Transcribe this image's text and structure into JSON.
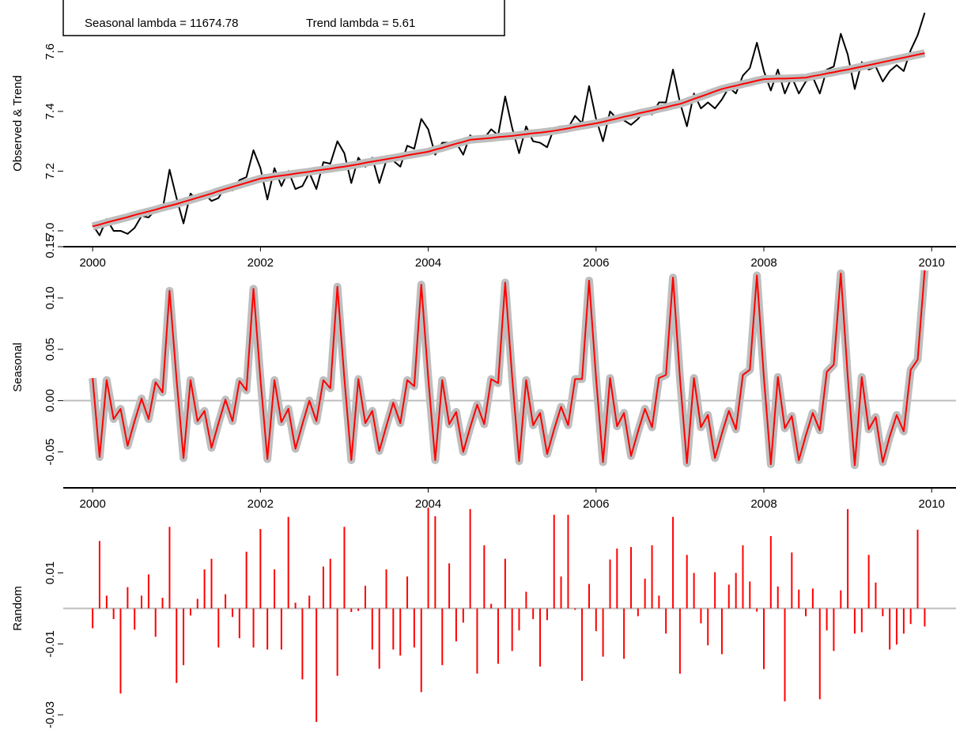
{
  "chart_data": {
    "type": "line",
    "x": [
      2000,
      2000.083,
      2000.167,
      2000.25,
      2000.333,
      2000.417,
      2000.5,
      2000.583,
      2000.667,
      2000.75,
      2000.833,
      2000.917,
      2001,
      2001.083,
      2001.167,
      2001.25,
      2001.333,
      2001.417,
      2001.5,
      2001.583,
      2001.667,
      2001.75,
      2001.833,
      2001.917,
      2002,
      2002.083,
      2002.167,
      2002.25,
      2002.333,
      2002.417,
      2002.5,
      2002.583,
      2002.667,
      2002.75,
      2002.833,
      2002.917,
      2003,
      2003.083,
      2003.167,
      2003.25,
      2003.333,
      2003.417,
      2003.5,
      2003.583,
      2003.667,
      2003.75,
      2003.833,
      2003.917,
      2004,
      2004.083,
      2004.167,
      2004.25,
      2004.333,
      2004.417,
      2004.5,
      2004.583,
      2004.667,
      2004.75,
      2004.833,
      2004.917,
      2005,
      2005.083,
      2005.167,
      2005.25,
      2005.333,
      2005.417,
      2005.5,
      2005.583,
      2005.667,
      2005.75,
      2005.833,
      2005.917,
      2006,
      2006.083,
      2006.167,
      2006.25,
      2006.333,
      2006.417,
      2006.5,
      2006.583,
      2006.667,
      2006.75,
      2006.833,
      2006.917,
      2007,
      2007.083,
      2007.167,
      2007.25,
      2007.333,
      2007.417,
      2007.5,
      2007.583,
      2007.667,
      2007.75,
      2007.833,
      2007.917,
      2008,
      2008.083,
      2008.167,
      2008.25,
      2008.333,
      2008.417,
      2008.5,
      2008.583,
      2008.667,
      2008.75,
      2008.833,
      2008.917,
      2009,
      2009.083,
      2009.167,
      2009.25,
      2009.333,
      2009.417,
      2009.5,
      2009.583,
      2009.667,
      2009.75,
      2009.833,
      2009.917
    ],
    "xlim": [
      1999.65,
      2010.29
    ],
    "xticks": [
      2000,
      2002,
      2004,
      2006,
      2008,
      2010
    ],
    "panels": [
      {
        "type": "line",
        "ylabel": "Observed & Trend",
        "ylim": [
          6.947,
          7.773
        ],
        "yticks": [
          {
            "value": 7,
            "label": "7.0"
          },
          7.2,
          7.4,
          7.6
        ],
        "show_xaxis": true,
        "annotations": [
          "Seasonal lambda = 11674.78",
          "Trend lambda = 5.61"
        ],
        "series": [
          {
            "color": "#000000",
            "values": [
              7.02,
              6.985,
              7.04,
              7.0,
              7.0,
              6.99,
              7.01,
              7.05,
              7.045,
              7.07,
              7.07,
              7.205,
              7.11,
              7.025,
              7.125,
              7.1,
              7.125,
              7.1,
              7.11,
              7.15,
              7.135,
              7.17,
              7.18,
              7.27,
              7.21,
              7.105,
              7.21,
              7.15,
              7.2,
              7.14,
              7.15,
              7.195,
              7.14,
              7.23,
              7.225,
              7.3,
              7.26,
              7.16,
              7.245,
              7.215,
              7.245,
              7.16,
              7.235,
              7.235,
              7.215,
              7.285,
              7.275,
              7.375,
              7.34,
              7.255,
              7.295,
              7.295,
              7.295,
              7.255,
              7.32,
              7.3,
              7.31,
              7.34,
              7.32,
              7.45,
              7.345,
              7.26,
              7.35,
              7.3,
              7.295,
              7.28,
              7.345,
              7.35,
              7.345,
              7.385,
              7.36,
              7.485,
              7.375,
              7.3,
              7.4,
              7.375,
              7.37,
              7.355,
              7.375,
              7.405,
              7.39,
              7.43,
              7.43,
              7.54,
              7.43,
              7.35,
              7.46,
              7.41,
              7.43,
              7.41,
              7.44,
              7.48,
              7.46,
              7.52,
              7.545,
              7.63,
              7.535,
              7.47,
              7.54,
              7.46,
              7.515,
              7.46,
              7.5,
              7.515,
              7.46,
              7.54,
              7.55,
              7.66,
              7.59,
              7.475,
              7.565,
              7.54,
              7.55,
              7.5,
              7.535,
              7.555,
              7.535,
              7.605,
              7.655,
              7.73
            ]
          },
          {
            "color": "#ff0000",
            "band_color": "#bebebe",
            "values": [
              7.015,
              7.021,
              7.028,
              7.034,
              7.04,
              7.046,
              7.053,
              7.059,
              7.065,
              7.071,
              7.078,
              7.084,
              7.09,
              7.097,
              7.104,
              7.111,
              7.118,
              7.125,
              7.133,
              7.14,
              7.147,
              7.154,
              7.161,
              7.168,
              7.175,
              7.178,
              7.182,
              7.185,
              7.188,
              7.192,
              7.195,
              7.198,
              7.202,
              7.205,
              7.208,
              7.212,
              7.215,
              7.219,
              7.223,
              7.228,
              7.232,
              7.236,
              7.24,
              7.244,
              7.248,
              7.253,
              7.257,
              7.261,
              7.265,
              7.272,
              7.278,
              7.285,
              7.292,
              7.298,
              7.305,
              7.307,
              7.309,
              7.311,
              7.314,
              7.316,
              7.318,
              7.321,
              7.324,
              7.327,
              7.329,
              7.332,
              7.335,
              7.339,
              7.343,
              7.348,
              7.352,
              7.356,
              7.36,
              7.365,
              7.371,
              7.376,
              7.382,
              7.387,
              7.393,
              7.398,
              7.403,
              7.409,
              7.414,
              7.42,
              7.425,
              7.433,
              7.442,
              7.45,
              7.458,
              7.467,
              7.475,
              7.481,
              7.486,
              7.492,
              7.497,
              7.503,
              7.508,
              7.509,
              7.51,
              7.51,
              7.511,
              7.512,
              7.513,
              7.518,
              7.522,
              7.527,
              7.531,
              7.536,
              7.54,
              7.545,
              7.55,
              7.555,
              7.56,
              7.565,
              7.57,
              7.575,
              7.58,
              7.585,
              7.59,
              7.595
            ]
          }
        ]
      },
      {
        "type": "line",
        "ylabel": "Seasonal",
        "ylim": [
          -0.085,
          0.15
        ],
        "yticks": [
          -0.05,
          {
            "value": 0,
            "label": "0.00"
          },
          0.05,
          {
            "value": 0.1,
            "label": "0.10"
          },
          {
            "value": 0.15,
            "label": "0.15"
          }
        ],
        "show_xaxis": true,
        "hline": 0,
        "series": [
          {
            "color": "#ff0000",
            "band_color": "#bebebe",
            "values": [
              0.022,
              -0.055,
              0.02,
              -0.018,
              -0.008,
              -0.044,
              -0.02,
              0.002,
              -0.018,
              0.018,
              0.008,
              0.107,
              0.021,
              -0.056,
              0.02,
              -0.02,
              -0.01,
              -0.046,
              -0.022,
              0.001,
              -0.02,
              0.019,
              0.01,
              0.109,
              0.021,
              -0.057,
              0.02,
              -0.021,
              -0.008,
              -0.047,
              -0.023,
              0,
              -0.02,
              0.02,
              0.012,
              0.111,
              0.022,
              -0.058,
              0.021,
              -0.022,
              -0.01,
              -0.049,
              -0.025,
              -0.002,
              -0.022,
              0.02,
              0.014,
              0.113,
              0.022,
              -0.058,
              0.02,
              -0.023,
              -0.011,
              -0.05,
              -0.026,
              -0.004,
              -0.023,
              0.021,
              0.017,
              0.115,
              0.023,
              -0.059,
              0.02,
              -0.024,
              -0.012,
              -0.052,
              -0.028,
              -0.006,
              -0.024,
              0.021,
              0.021,
              0.117,
              0.022,
              -0.06,
              0.022,
              -0.025,
              -0.012,
              -0.054,
              -0.03,
              -0.008,
              -0.026,
              0.022,
              0.025,
              0.12,
              0.022,
              -0.061,
              0.022,
              -0.026,
              -0.014,
              -0.056,
              -0.032,
              -0.01,
              -0.028,
              0.025,
              0.03,
              0.122,
              0.023,
              -0.062,
              0.023,
              -0.027,
              -0.015,
              -0.058,
              -0.034,
              -0.012,
              -0.029,
              0.028,
              0.035,
              0.124,
              0.023,
              -0.063,
              0.023,
              -0.028,
              -0.016,
              -0.06,
              -0.035,
              -0.014,
              -0.03,
              0.03,
              0.04,
              0.127
            ]
          }
        ]
      },
      {
        "type": "bar",
        "ylabel": "Random",
        "ylim": [
          -0.034,
          0.034
        ],
        "yticks": [
          -0.03,
          -0.01,
          0.01
        ],
        "show_xaxis": false,
        "hline": 0,
        "series": [
          {
            "color": "#ff0000",
            "values": [
              -0.0056,
              0.019,
              0.0036,
              -0.003,
              -0.024,
              0.006,
              -0.006,
              0.0036,
              0.0096,
              -0.008,
              0.003,
              0.023,
              -0.021,
              -0.016,
              -0.002,
              0.0027,
              0.011,
              0.014,
              -0.011,
              0.004,
              -0.0024,
              -0.0084,
              0.016,
              -0.011,
              0.0224,
              -0.0116,
              0.011,
              -0.0116,
              0.0258,
              0.0016,
              -0.02,
              0.0036,
              -0.032,
              0.0118,
              0.014,
              -0.019,
              0.023,
              -0.001,
              -0.0007,
              0.0064,
              -0.0116,
              -0.017,
              0.011,
              -0.0116,
              -0.0133,
              0.009,
              -0.011,
              -0.0236,
              0.0284,
              0.026,
              -0.016,
              0.0127,
              -0.0093,
              -0.004,
              0.028,
              -0.0184,
              0.0178,
              0.0013,
              -0.0156,
              0.014,
              -0.012,
              -0.0062,
              0.0047,
              -0.003,
              -0.0164,
              -0.0033,
              0.0264,
              0.009,
              0.0264,
              -0.0004,
              -0.0204,
              0.0069,
              -0.0064,
              -0.0136,
              0.0138,
              0.0169,
              -0.0142,
              0.0173,
              -0.0022,
              0.0084,
              0.0178,
              0.0036,
              -0.0071,
              0.0258,
              -0.0184,
              0.0151,
              0.01,
              -0.0042,
              -0.0104,
              0.0102,
              -0.0129,
              0.0067,
              0.01,
              0.0178,
              0.0076,
              -0.0009,
              -0.0171,
              0.0204,
              0.0062,
              -0.0262,
              0.0158,
              0.0053,
              -0.0022,
              0.0056,
              -0.0256,
              -0.0062,
              -0.012,
              0.0051,
              0.028,
              -0.0071,
              -0.0067,
              0.0151,
              0.0073,
              -0.0022,
              -0.0116,
              -0.0102,
              -0.0071,
              -0.0044,
              0.0222,
              -0.0051
            ]
          }
        ]
      }
    ]
  }
}
